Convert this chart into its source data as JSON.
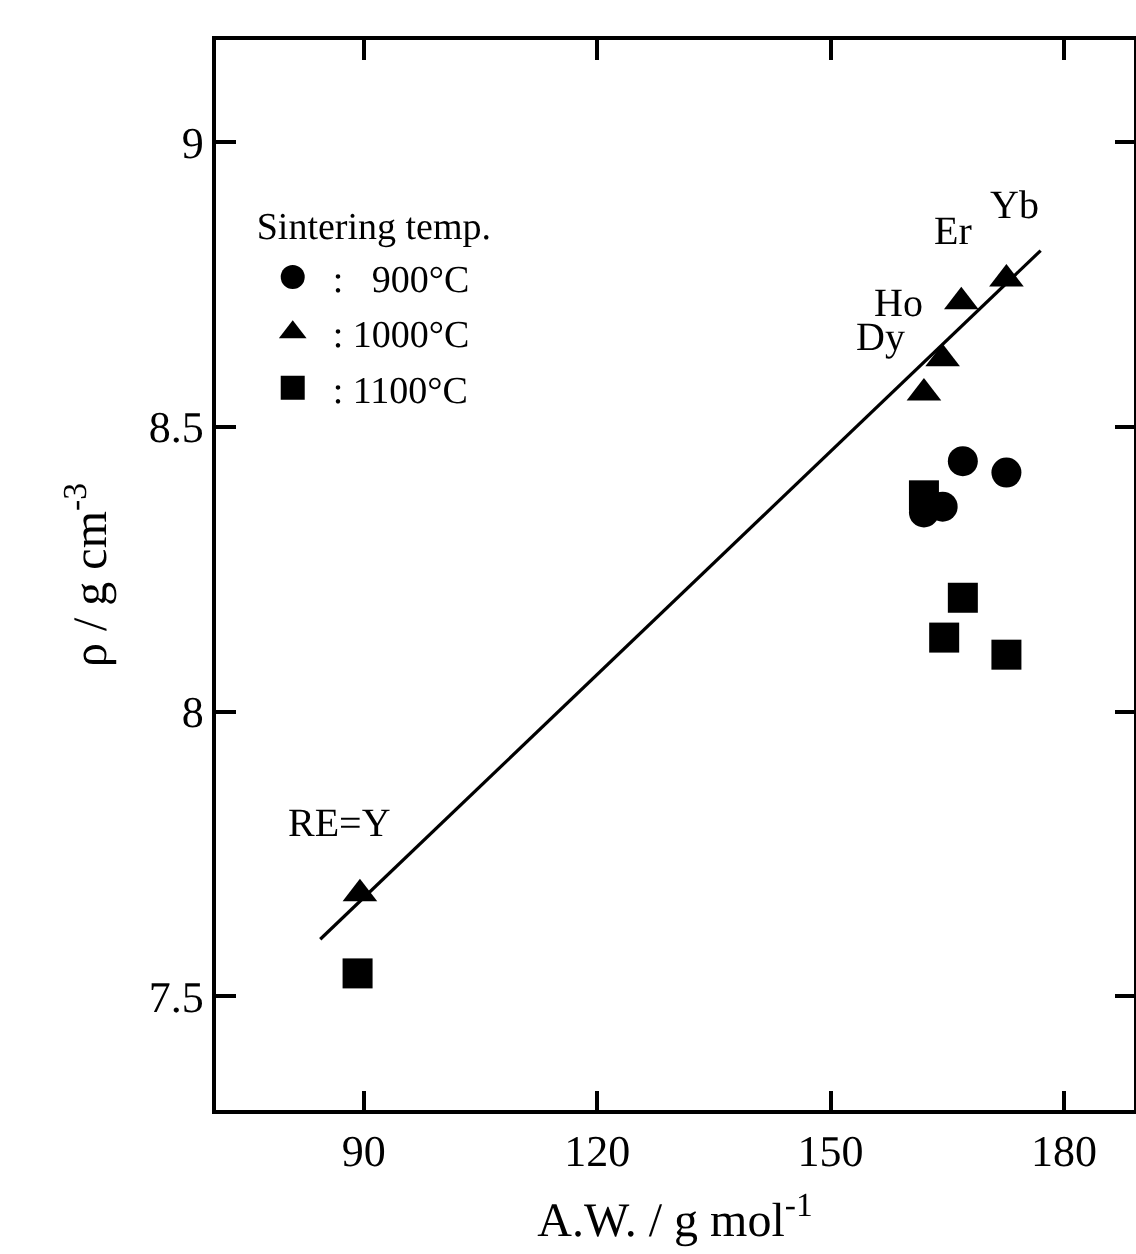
{
  "chart_data": {
    "type": "scatter",
    "xlabel": "A.W. / g mol$^{-1}$",
    "ylabel": "ρ / g cm$^{-3}$",
    "legend_title": "Sintering temp.",
    "legend": "top left",
    "grid": false,
    "xlim": [
      71,
      189
    ],
    "xticks": [
      90,
      120,
      150,
      180
    ],
    "ylim": [
      7.3,
      9.18
    ],
    "yticks": [
      9,
      8.5,
      8,
      7.5
    ],
    "series": [
      {
        "name": ":   900°C",
        "color": "#000000",
        "marker": "circle",
        "x": [
          162,
          164.4,
          167,
          172.6
        ],
        "values": [
          8.35,
          8.36,
          8.44,
          8.42
        ]
      },
      {
        "name": ": 1000°C",
        "color": "#000000",
        "marker": "triangle",
        "x": [
          89.5,
          162,
          164.4,
          166.8,
          172.6
        ],
        "values": [
          7.68,
          8.56,
          8.62,
          8.72,
          8.76
        ]
      },
      {
        "name": ": 1100°C",
        "color": "#000000",
        "marker": "square",
        "x": [
          89.2,
          162,
          164.6,
          167,
          172.6
        ],
        "values": [
          7.54,
          8.38,
          8.13,
          8.2,
          8.1
        ]
      },
      {
        "type": "line",
        "color": "#000000",
        "marker": "none",
        "x": [
          84.4,
          177
        ],
        "values": [
          7.6,
          8.81
        ]
      }
    ],
    "annotations": [
      {
        "text": "RE=Y",
        "x": 89.5,
        "y": 7.68
      },
      {
        "text": "Dy",
        "x": 162,
        "y": 8.56
      },
      {
        "text": "Ho",
        "x": 164.4,
        "y": 8.62
      },
      {
        "text": "Er",
        "x": 166.8,
        "y": 8.72
      },
      {
        "text": "Yb",
        "x": 172.6,
        "y": 8.76
      }
    ]
  }
}
